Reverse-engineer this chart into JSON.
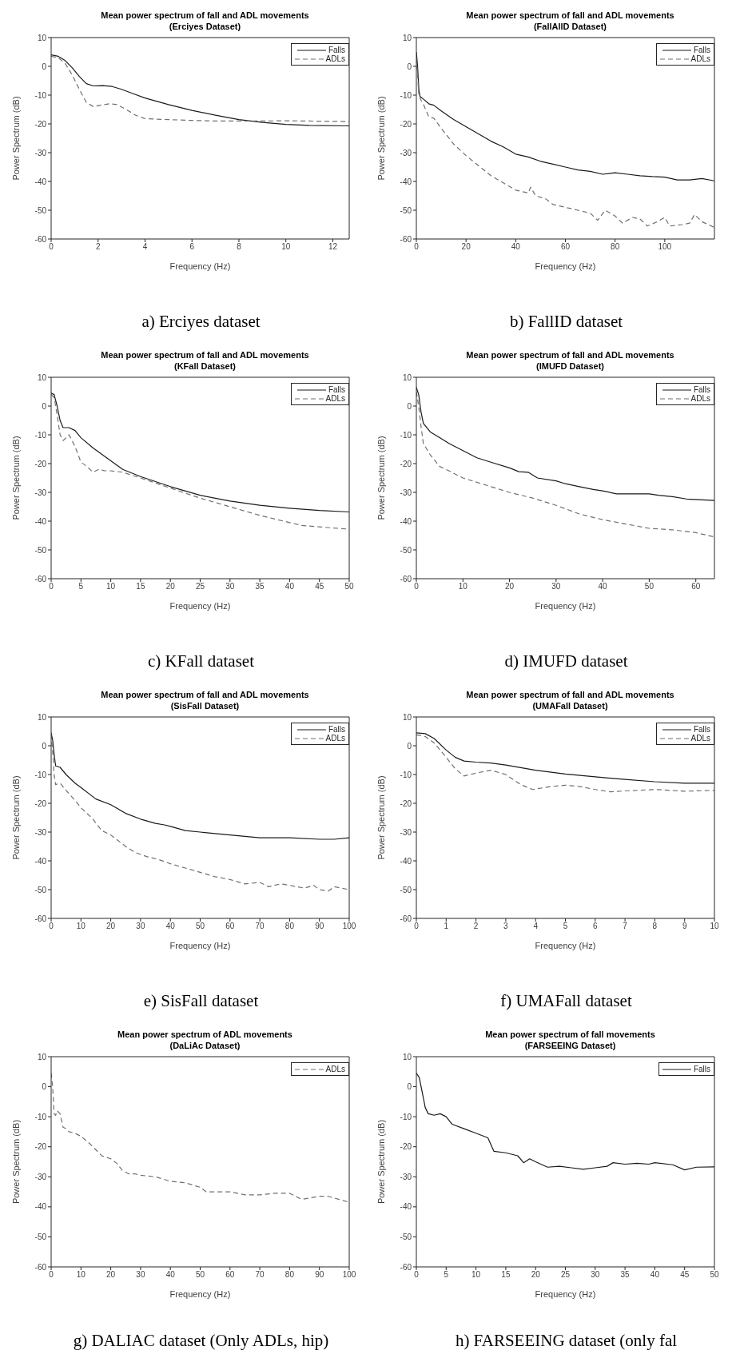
{
  "chart_data": [
    {
      "type": "line",
      "title": "Mean power spectrum of fall and ADL movements",
      "subtitle": "(Erciyes Dataset)",
      "xlabel": "Frequency (Hz)",
      "ylabel": "Power Spectrum (dB)",
      "xlim": [
        0,
        12.7
      ],
      "xticks": [
        0,
        2,
        4,
        6,
        8,
        10,
        12
      ],
      "ylim": [
        -60,
        10
      ],
      "yticks": [
        -60,
        -50,
        -40,
        -30,
        -20,
        -10,
        0,
        10
      ],
      "legend": "top right",
      "annotations": [
        "a) Erciyes dataset"
      ],
      "series": [
        {
          "name": "Falls",
          "color": "#1a1a1a",
          "line_style": "solid",
          "x": [
            0,
            0.3,
            0.6,
            0.9,
            1.2,
            1.5,
            1.8,
            2.2,
            2.6,
            3,
            3.5,
            4,
            5,
            6,
            7,
            8,
            9,
            10,
            11,
            12.7
          ],
          "values": [
            4,
            3.5,
            2,
            -0.5,
            -3.5,
            -6,
            -6.8,
            -6.7,
            -7,
            -8,
            -9.5,
            -11,
            -13.3,
            -15.3,
            -17,
            -18.5,
            -19.5,
            -20.2,
            -20.5,
            -20.7
          ]
        },
        {
          "name": "ADLs",
          "color": "#707070",
          "line_style": "dashed",
          "x": [
            0,
            0.3,
            0.6,
            0.9,
            1.2,
            1.5,
            1.8,
            2.1,
            2.5,
            2.8,
            3.2,
            3.6,
            4,
            5,
            6,
            7,
            8,
            9,
            10,
            12.7
          ],
          "values": [
            3.5,
            3,
            1,
            -3,
            -8,
            -12.5,
            -14,
            -13.5,
            -13,
            -13.3,
            -15,
            -17,
            -18.2,
            -18.5,
            -18.8,
            -19,
            -19,
            -19,
            -18.9,
            -19.2
          ]
        }
      ]
    },
    {
      "type": "line",
      "title": "Mean power spectrum of fall and ADL movements",
      "subtitle": "(FallAllD Dataset)",
      "xlabel": "Frequency (Hz)",
      "ylabel": "Power Spectrum (dB)",
      "xlim": [
        0,
        120
      ],
      "xticks": [
        0,
        20,
        40,
        60,
        80,
        100
      ],
      "ylim": [
        -60,
        10
      ],
      "yticks": [
        -60,
        -50,
        -40,
        -30,
        -20,
        -10,
        0,
        10
      ],
      "legend": "top right",
      "annotations": [
        "b) FallID dataset"
      ],
      "series": [
        {
          "name": "Falls",
          "color": "#1a1a1a",
          "line_style": "solid",
          "x": [
            0,
            0.5,
            1,
            1.5,
            3,
            5,
            7,
            10,
            15,
            20,
            25,
            30,
            35,
            40,
            45,
            50,
            55,
            60,
            65,
            70,
            75,
            80,
            85,
            90,
            95,
            100,
            105,
            110,
            115,
            120
          ],
          "values": [
            5,
            0,
            -8,
            -10.5,
            -11.5,
            -13,
            -13.5,
            -15.5,
            -18.5,
            -21,
            -23.5,
            -26,
            -28,
            -30.5,
            -31.5,
            -33,
            -34,
            -35,
            -36,
            -36.5,
            -37.5,
            -37,
            -37.5,
            -38,
            -38.3,
            -38.5,
            -39.5,
            -39.5,
            -39,
            -39.8
          ]
        },
        {
          "name": "ADLs",
          "color": "#707070",
          "line_style": "dashed",
          "x": [
            0,
            0.5,
            1,
            2,
            3,
            5,
            7,
            10,
            15,
            20,
            25,
            30,
            35,
            40,
            45,
            46,
            48,
            52,
            55,
            60,
            65,
            70,
            73,
            76,
            80,
            83,
            87,
            90,
            93,
            97,
            100,
            102,
            107,
            110,
            112,
            115,
            120
          ],
          "values": [
            3,
            -3,
            -10,
            -12,
            -13.5,
            -17.5,
            -18,
            -21.5,
            -27,
            -31,
            -34.5,
            -38,
            -40.5,
            -43,
            -44,
            -42,
            -45,
            -46,
            -48,
            -49,
            -50,
            -51,
            -53.5,
            -50,
            -52,
            -54.5,
            -52.5,
            -53,
            -55.5,
            -54,
            -52.5,
            -55.5,
            -55,
            -54.5,
            -51.5,
            -54,
            -56
          ]
        }
      ]
    },
    {
      "type": "line",
      "title": "Mean power spectrum of fall and ADL movements",
      "subtitle": "(KFall Dataset)",
      "xlabel": "Frequency (Hz)",
      "ylabel": "Power Spectrum (dB)",
      "xlim": [
        0,
        50
      ],
      "xticks": [
        0,
        5,
        10,
        15,
        20,
        25,
        30,
        35,
        40,
        45,
        50
      ],
      "ylim": [
        -60,
        10
      ],
      "yticks": [
        -60,
        -50,
        -40,
        -30,
        -20,
        -10,
        0,
        10
      ],
      "legend": "top right",
      "annotations": [
        "c) KFall dataset"
      ],
      "series": [
        {
          "name": "Falls",
          "color": "#1a1a1a",
          "line_style": "solid",
          "x": [
            0,
            0.5,
            1,
            1.5,
            2,
            3,
            4,
            5,
            7,
            10,
            12,
            15,
            20,
            25,
            30,
            35,
            40,
            45,
            50
          ],
          "values": [
            4.5,
            4,
            0,
            -5,
            -7.5,
            -7.5,
            -8.5,
            -11,
            -14.5,
            -19,
            -22,
            -24.5,
            -28,
            -31,
            -33,
            -34.5,
            -35.5,
            -36.3,
            -36.8
          ]
        },
        {
          "name": "ADLs",
          "color": "#707070",
          "line_style": "dashed",
          "x": [
            0,
            0.5,
            1,
            1.5,
            2,
            2.5,
            3,
            4,
            5,
            6,
            7,
            8,
            9,
            10,
            12,
            15,
            20,
            25,
            30,
            35,
            40,
            42,
            45,
            50
          ],
          "values": [
            4,
            3,
            -3,
            -10,
            -12,
            -11,
            -10,
            -14,
            -19.5,
            -21,
            -23,
            -22,
            -22.5,
            -22.5,
            -23,
            -25,
            -28.5,
            -32,
            -35,
            -38,
            -40.5,
            -41.5,
            -42,
            -42.8
          ]
        }
      ]
    },
    {
      "type": "line",
      "title": "Mean power spectrum of fall and ADL movements",
      "subtitle": "(IMUFD Dataset)",
      "xlabel": "Frequency (Hz)",
      "ylabel": "Power Spectrum (dB)",
      "xlim": [
        0,
        64
      ],
      "xticks": [
        0,
        10,
        20,
        30,
        40,
        50,
        60
      ],
      "ylim": [
        -60,
        10
      ],
      "yticks": [
        -60,
        -50,
        -40,
        -30,
        -20,
        -10,
        0,
        10
      ],
      "legend": "top right",
      "annotations": [
        "d) IMUFD dataset"
      ],
      "series": [
        {
          "name": "Falls",
          "color": "#1a1a1a",
          "line_style": "solid",
          "x": [
            0,
            0.5,
            1,
            1.5,
            3,
            5,
            7,
            10,
            13,
            16,
            20,
            22,
            24,
            26,
            30,
            32,
            35,
            38,
            40,
            43,
            46,
            50,
            52,
            55,
            58,
            64
          ],
          "values": [
            6.5,
            4,
            -2,
            -6,
            -9,
            -11,
            -13,
            -15.5,
            -18,
            -19.5,
            -21.5,
            -22.8,
            -23,
            -25,
            -26,
            -27,
            -28,
            -29,
            -29.5,
            -30.5,
            -30.5,
            -30.5,
            -31,
            -31.5,
            -32.3,
            -32.8
          ]
        },
        {
          "name": "ADLs",
          "color": "#707070",
          "line_style": "dashed",
          "x": [
            0,
            0.5,
            1,
            1.5,
            3,
            5,
            7,
            10,
            15,
            20,
            25,
            30,
            35,
            40,
            45,
            50,
            55,
            60,
            64
          ],
          "values": [
            5,
            0,
            -7,
            -13,
            -17,
            -21,
            -22.5,
            -25,
            -27.5,
            -30,
            -32,
            -34.5,
            -37.5,
            -39.5,
            -41,
            -42.5,
            -43,
            -44,
            -45.5
          ]
        }
      ]
    },
    {
      "type": "line",
      "title": "Mean power spectrum of fall and ADL movements",
      "subtitle": "(SisFall Dataset)",
      "xlabel": "Frequency (Hz)",
      "ylabel": "Power Spectrum (dB)",
      "xlim": [
        0,
        100
      ],
      "xticks": [
        0,
        10,
        20,
        30,
        40,
        50,
        60,
        70,
        80,
        90,
        100
      ],
      "ylim": [
        -60,
        10
      ],
      "yticks": [
        -60,
        -50,
        -40,
        -30,
        -20,
        -10,
        0,
        10
      ],
      "legend": "top right",
      "annotations": [
        "e) SisFall dataset"
      ],
      "series": [
        {
          "name": "Falls",
          "color": "#1a1a1a",
          "line_style": "solid",
          "x": [
            0,
            0.5,
            1,
            1.5,
            3,
            5,
            8,
            10,
            15,
            20,
            25,
            30,
            35,
            38,
            40,
            45,
            50,
            55,
            60,
            65,
            70,
            80,
            90,
            95,
            100
          ],
          "values": [
            4.5,
            2,
            -3,
            -7,
            -7.5,
            -10,
            -13,
            -14.5,
            -18.5,
            -20.5,
            -23.5,
            -25.5,
            -27,
            -27.5,
            -28,
            -29.5,
            -30,
            -30.5,
            -31,
            -31.5,
            -32,
            -32,
            -32.5,
            -32.5,
            -32
          ]
        },
        {
          "name": "ADLs",
          "color": "#707070",
          "line_style": "dashed",
          "x": [
            0,
            0.5,
            1,
            1.5,
            3,
            5,
            8,
            10,
            14,
            17,
            20,
            25,
            28,
            32,
            36,
            40,
            45,
            50,
            55,
            60,
            65,
            70,
            73,
            77,
            80,
            85,
            88,
            90,
            93,
            95,
            100
          ],
          "values": [
            4,
            -2,
            -10,
            -13.5,
            -13,
            -15.5,
            -19,
            -21.5,
            -25.5,
            -29.5,
            -31,
            -35,
            -37,
            -38.5,
            -39.5,
            -41,
            -42.5,
            -44,
            -45.5,
            -46.5,
            -48,
            -47.5,
            -49,
            -48,
            -48.5,
            -49.5,
            -48.5,
            -50,
            -50.5,
            -49,
            -50
          ]
        }
      ]
    },
    {
      "type": "line",
      "title": "Mean power spectrum of fall and ADL movements",
      "subtitle": "(UMAFall Dataset)",
      "xlabel": "Frequency (Hz)",
      "ylabel": "Power Spectrum (dB)",
      "xlim": [
        0,
        10
      ],
      "xticks": [
        0,
        1,
        2,
        3,
        4,
        5,
        6,
        7,
        8,
        9,
        10
      ],
      "ylim": [
        -60,
        10
      ],
      "yticks": [
        -60,
        -50,
        -40,
        -30,
        -20,
        -10,
        0,
        10
      ],
      "legend": "top right",
      "annotations": [
        "f) UMAFall dataset"
      ],
      "series": [
        {
          "name": "Falls",
          "color": "#1a1a1a",
          "line_style": "solid",
          "x": [
            0,
            0.3,
            0.6,
            1,
            1.3,
            1.6,
            2,
            2.5,
            3,
            4,
            5,
            6,
            7,
            8,
            9,
            10
          ],
          "values": [
            4.5,
            4.2,
            2.5,
            -1.5,
            -4,
            -5.3,
            -5.7,
            -6,
            -6.7,
            -8.5,
            -9.8,
            -10.8,
            -11.7,
            -12.5,
            -13,
            -13
          ]
        },
        {
          "name": "ADLs",
          "color": "#707070",
          "line_style": "dashed",
          "x": [
            0,
            0.3,
            0.6,
            1,
            1.3,
            1.6,
            2,
            2.5,
            3,
            3.5,
            3.9,
            4.5,
            5,
            5.5,
            6,
            6.5,
            7,
            8,
            9,
            10
          ],
          "values": [
            3.8,
            3.2,
            1,
            -4,
            -8,
            -10.5,
            -9.5,
            -8.5,
            -10,
            -13.5,
            -15.2,
            -14.2,
            -13.7,
            -14.2,
            -15.2,
            -16,
            -15.7,
            -15.2,
            -15.8,
            -15.5
          ]
        }
      ]
    },
    {
      "type": "line",
      "title": "Mean power spectrum of ADL movements",
      "subtitle": "(DaLiAc Dataset)",
      "xlabel": "Frequency (Hz)",
      "ylabel": "Power Spectrum (dB)",
      "xlim": [
        0,
        100
      ],
      "xticks": [
        0,
        10,
        20,
        30,
        40,
        50,
        60,
        70,
        80,
        90,
        100
      ],
      "ylim": [
        -60,
        10
      ],
      "yticks": [
        -60,
        -50,
        -40,
        -30,
        -20,
        -10,
        0,
        10
      ],
      "legend": "top right",
      "annotations": [
        "g) DALIAC dataset (Only ADLs, hip)"
      ],
      "series": [
        {
          "name": "ADLs",
          "color": "#707070",
          "line_style": "dashed",
          "x": [
            0,
            0.5,
            1,
            1.5,
            2,
            3,
            4,
            5,
            6,
            8,
            10,
            13,
            15,
            17,
            20,
            22,
            24,
            26,
            28,
            30,
            35,
            40,
            45,
            50,
            52,
            55,
            60,
            65,
            70,
            75,
            80,
            84,
            87,
            90,
            93,
            100
          ],
          "values": [
            4.5,
            0,
            -9,
            -9.5,
            -8,
            -9,
            -13.5,
            -14,
            -15,
            -15.5,
            -16.5,
            -19,
            -21,
            -23,
            -24,
            -25.5,
            -28,
            -29,
            -29,
            -29.5,
            -30,
            -31.5,
            -32,
            -33.5,
            -35,
            -35,
            -35,
            -36,
            -36,
            -35.5,
            -35.5,
            -37.5,
            -37,
            -36.5,
            -36.5,
            -38.5
          ]
        }
      ]
    },
    {
      "type": "line",
      "title": "Mean power spectrum of fall movements",
      "subtitle": "(FARSEEING Dataset)",
      "xlabel": "Frequency (Hz)",
      "ylabel": "Power Spectrum (dB)",
      "xlim": [
        0,
        50
      ],
      "xticks": [
        0,
        5,
        10,
        15,
        20,
        25,
        30,
        35,
        40,
        45,
        50
      ],
      "ylim": [
        -60,
        10
      ],
      "yticks": [
        -60,
        -50,
        -40,
        -30,
        -20,
        -10,
        0,
        10
      ],
      "legend": "top right",
      "annotations": [
        "h) FARSEEING dataset (only fal"
      ],
      "series": [
        {
          "name": "Falls",
          "color": "#1a1a1a",
          "line_style": "solid",
          "x": [
            0,
            0.5,
            1,
            1.5,
            2,
            3,
            4,
            5,
            6,
            8,
            10,
            12,
            13,
            15,
            17,
            18,
            19,
            20,
            22,
            24,
            26,
            28,
            30,
            32,
            33,
            35,
            37,
            39,
            40,
            43,
            45,
            47,
            50
          ],
          "values": [
            4.5,
            3,
            -2,
            -7,
            -9,
            -9.5,
            -9,
            -10,
            -12.5,
            -14,
            -15.5,
            -17,
            -21.5,
            -22,
            -23,
            -25.3,
            -24,
            -25,
            -26.8,
            -26.5,
            -27,
            -27.5,
            -27,
            -26.5,
            -25.3,
            -25.8,
            -25.5,
            -25.8,
            -25.3,
            -26,
            -27.7,
            -26.8,
            -26.7
          ]
        }
      ]
    }
  ]
}
